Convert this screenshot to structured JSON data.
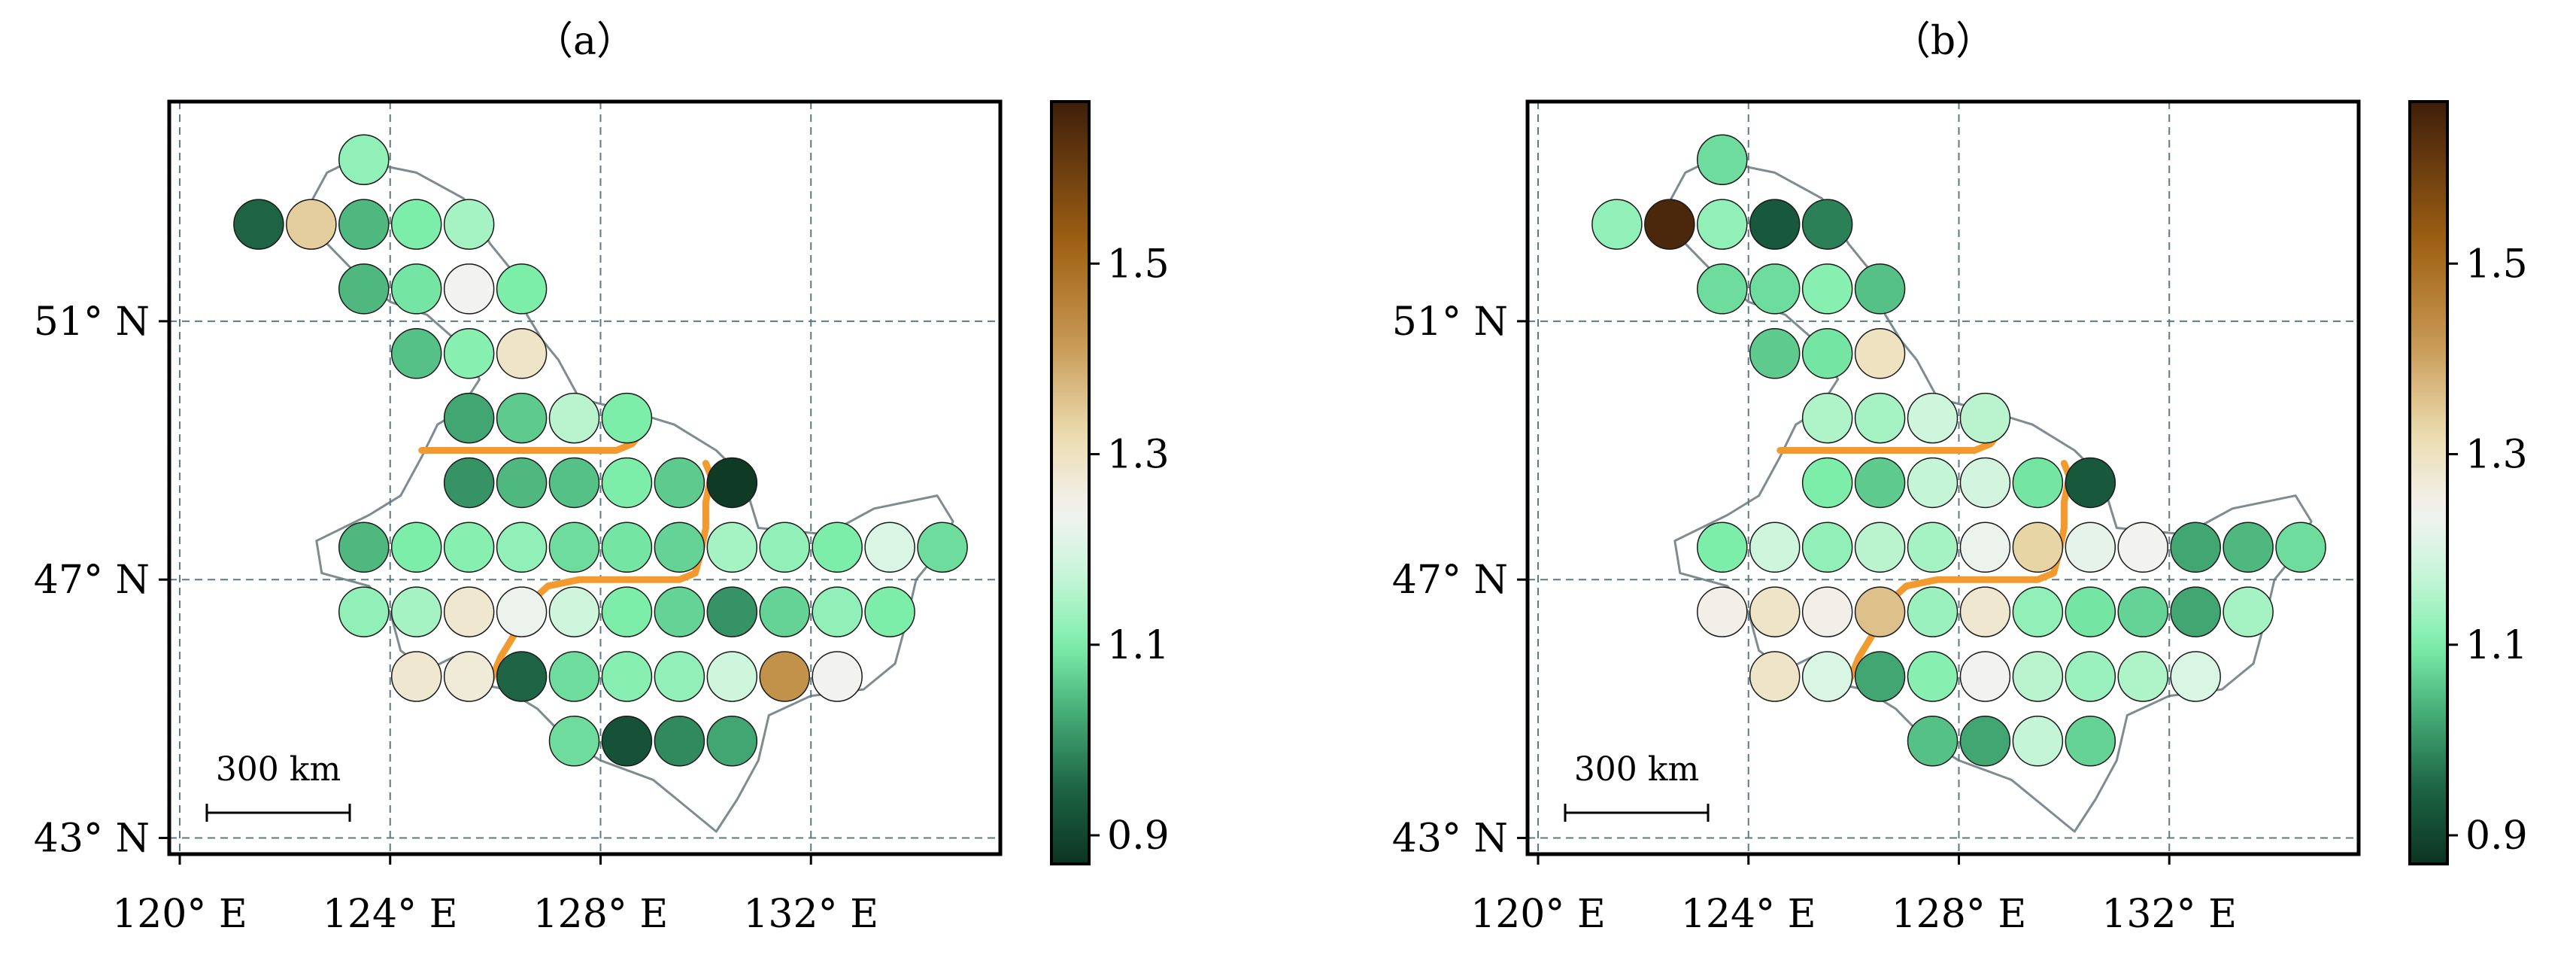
{
  "panels": [
    {
      "title": "（a）",
      "scale_bar_label": "300 km",
      "x_ticks": [
        "120° E",
        "124° E",
        "128° E",
        "132° E"
      ],
      "y_ticks": [
        "51° N",
        "47° N",
        "43° N"
      ],
      "colorbar_ticks": [
        "1.5",
        "1.3",
        "1.1",
        "0.9"
      ],
      "circles": [
        {
          "lon": 123.5,
          "lat": 53.5,
          "v": 1.12
        },
        {
          "lon": 121.5,
          "lat": 52.5,
          "v": 0.95
        },
        {
          "lon": 122.5,
          "lat": 52.5,
          "v": 1.34
        },
        {
          "lon": 123.5,
          "lat": 52.5,
          "v": 1.04
        },
        {
          "lon": 124.5,
          "lat": 52.5,
          "v": 1.1
        },
        {
          "lon": 125.5,
          "lat": 52.5,
          "v": 1.14
        },
        {
          "lon": 123.5,
          "lat": 51.5,
          "v": 1.04
        },
        {
          "lon": 124.5,
          "lat": 51.5,
          "v": 1.09
        },
        {
          "lon": 125.5,
          "lat": 51.5,
          "v": 1.24
        },
        {
          "lon": 126.5,
          "lat": 51.5,
          "v": 1.1
        },
        {
          "lon": 124.5,
          "lat": 50.5,
          "v": 1.05
        },
        {
          "lon": 125.5,
          "lat": 50.5,
          "v": 1.11
        },
        {
          "lon": 126.5,
          "lat": 50.5,
          "v": 1.29
        },
        {
          "lon": 125.5,
          "lat": 49.5,
          "v": 1.02
        },
        {
          "lon": 126.5,
          "lat": 49.5,
          "v": 1.06
        },
        {
          "lon": 127.5,
          "lat": 49.5,
          "v": 1.16
        },
        {
          "lon": 128.5,
          "lat": 49.5,
          "v": 1.1
        },
        {
          "lon": 125.5,
          "lat": 48.5,
          "v": 1.0
        },
        {
          "lon": 126.5,
          "lat": 48.5,
          "v": 1.04
        },
        {
          "lon": 127.5,
          "lat": 48.5,
          "v": 1.05
        },
        {
          "lon": 128.5,
          "lat": 48.5,
          "v": 1.1
        },
        {
          "lon": 129.5,
          "lat": 48.5,
          "v": 1.06
        },
        {
          "lon": 130.5,
          "lat": 48.5,
          "v": 0.88
        },
        {
          "lon": 123.5,
          "lat": 47.5,
          "v": 1.04
        },
        {
          "lon": 124.5,
          "lat": 47.5,
          "v": 1.1
        },
        {
          "lon": 125.5,
          "lat": 47.5,
          "v": 1.11
        },
        {
          "lon": 126.5,
          "lat": 47.5,
          "v": 1.12
        },
        {
          "lon": 127.5,
          "lat": 47.5,
          "v": 1.08
        },
        {
          "lon": 128.5,
          "lat": 47.5,
          "v": 1.09
        },
        {
          "lon": 129.5,
          "lat": 47.5,
          "v": 1.07
        },
        {
          "lon": 130.5,
          "lat": 47.5,
          "v": 1.14
        },
        {
          "lon": 131.5,
          "lat": 47.5,
          "v": 1.12
        },
        {
          "lon": 132.5,
          "lat": 47.5,
          "v": 1.1
        },
        {
          "lon": 133.5,
          "lat": 47.5,
          "v": 1.2
        },
        {
          "lon": 134.5,
          "lat": 47.5,
          "v": 1.08
        },
        {
          "lon": 123.5,
          "lat": 46.5,
          "v": 1.12
        },
        {
          "lon": 124.5,
          "lat": 46.5,
          "v": 1.14
        },
        {
          "lon": 125.5,
          "lat": 46.5,
          "v": 1.28
        },
        {
          "lon": 126.5,
          "lat": 46.5,
          "v": 1.23
        },
        {
          "lon": 127.5,
          "lat": 46.5,
          "v": 1.18
        },
        {
          "lon": 128.5,
          "lat": 46.5,
          "v": 1.1
        },
        {
          "lon": 129.5,
          "lat": 46.5,
          "v": 1.07
        },
        {
          "lon": 130.5,
          "lat": 46.5,
          "v": 1.0
        },
        {
          "lon": 131.5,
          "lat": 46.5,
          "v": 1.07
        },
        {
          "lon": 132.5,
          "lat": 46.5,
          "v": 1.12
        },
        {
          "lon": 133.5,
          "lat": 46.5,
          "v": 1.1
        },
        {
          "lon": 124.5,
          "lat": 45.5,
          "v": 1.28
        },
        {
          "lon": 125.5,
          "lat": 45.5,
          "v": 1.27
        },
        {
          "lon": 126.5,
          "lat": 45.5,
          "v": 0.95
        },
        {
          "lon": 127.5,
          "lat": 45.5,
          "v": 1.08
        },
        {
          "lon": 128.5,
          "lat": 45.5,
          "v": 1.11
        },
        {
          "lon": 129.5,
          "lat": 45.5,
          "v": 1.12
        },
        {
          "lon": 130.5,
          "lat": 45.5,
          "v": 1.18
        },
        {
          "lon": 131.5,
          "lat": 45.5,
          "v": 1.43
        },
        {
          "lon": 132.5,
          "lat": 45.5,
          "v": 1.24
        },
        {
          "lon": 127.5,
          "lat": 44.5,
          "v": 1.08
        },
        {
          "lon": 128.5,
          "lat": 44.5,
          "v": 0.92
        },
        {
          "lon": 129.5,
          "lat": 44.5,
          "v": 0.99
        },
        {
          "lon": 130.5,
          "lat": 44.5,
          "v": 1.02
        }
      ]
    },
    {
      "title": "（b）",
      "scale_bar_label": "300 km",
      "x_ticks": [
        "120° E",
        "124° E",
        "128° E",
        "132° E"
      ],
      "y_ticks": [
        "51° N",
        "47° N",
        "43° N"
      ],
      "colorbar_ticks": [
        "1.5",
        "1.3",
        "1.1",
        "0.9"
      ],
      "circles": [
        {
          "lon": 123.5,
          "lat": 53.5,
          "v": 1.08
        },
        {
          "lon": 121.5,
          "lat": 52.5,
          "v": 1.12
        },
        {
          "lon": 122.5,
          "lat": 52.5,
          "v": 1.65
        },
        {
          "lon": 123.5,
          "lat": 52.5,
          "v": 1.12
        },
        {
          "lon": 124.5,
          "lat": 52.5,
          "v": 0.93
        },
        {
          "lon": 125.5,
          "lat": 52.5,
          "v": 0.98
        },
        {
          "lon": 123.5,
          "lat": 51.5,
          "v": 1.08
        },
        {
          "lon": 124.5,
          "lat": 51.5,
          "v": 1.08
        },
        {
          "lon": 125.5,
          "lat": 51.5,
          "v": 1.11
        },
        {
          "lon": 126.5,
          "lat": 51.5,
          "v": 1.05
        },
        {
          "lon": 124.5,
          "lat": 50.5,
          "v": 1.06
        },
        {
          "lon": 125.5,
          "lat": 50.5,
          "v": 1.09
        },
        {
          "lon": 126.5,
          "lat": 50.5,
          "v": 1.3
        },
        {
          "lon": 125.5,
          "lat": 49.5,
          "v": 1.15
        },
        {
          "lon": 126.5,
          "lat": 49.5,
          "v": 1.14
        },
        {
          "lon": 127.5,
          "lat": 49.5,
          "v": 1.18
        },
        {
          "lon": 128.5,
          "lat": 49.5,
          "v": 1.16
        },
        {
          "lon": 125.5,
          "lat": 48.5,
          "v": 1.1
        },
        {
          "lon": 126.5,
          "lat": 48.5,
          "v": 1.06
        },
        {
          "lon": 127.5,
          "lat": 48.5,
          "v": 1.17
        },
        {
          "lon": 128.5,
          "lat": 48.5,
          "v": 1.19
        },
        {
          "lon": 129.5,
          "lat": 48.5,
          "v": 1.09
        },
        {
          "lon": 130.5,
          "lat": 48.5,
          "v": 0.93
        },
        {
          "lon": 123.5,
          "lat": 47.5,
          "v": 1.1
        },
        {
          "lon": 124.5,
          "lat": 47.5,
          "v": 1.18
        },
        {
          "lon": 125.5,
          "lat": 47.5,
          "v": 1.12
        },
        {
          "lon": 126.5,
          "lat": 47.5,
          "v": 1.16
        },
        {
          "lon": 127.5,
          "lat": 47.5,
          "v": 1.14
        },
        {
          "lon": 128.5,
          "lat": 47.5,
          "v": 1.23
        },
        {
          "lon": 129.5,
          "lat": 47.5,
          "v": 1.33
        },
        {
          "lon": 130.5,
          "lat": 47.5,
          "v": 1.22
        },
        {
          "lon": 131.5,
          "lat": 47.5,
          "v": 1.24
        },
        {
          "lon": 132.5,
          "lat": 47.5,
          "v": 1.02
        },
        {
          "lon": 133.5,
          "lat": 47.5,
          "v": 1.04
        },
        {
          "lon": 134.5,
          "lat": 47.5,
          "v": 1.08
        },
        {
          "lon": 123.5,
          "lat": 46.5,
          "v": 1.25
        },
        {
          "lon": 124.5,
          "lat": 46.5,
          "v": 1.29
        },
        {
          "lon": 125.5,
          "lat": 46.5,
          "v": 1.25
        },
        {
          "lon": 126.5,
          "lat": 46.5,
          "v": 1.36
        },
        {
          "lon": 127.5,
          "lat": 46.5,
          "v": 1.13
        },
        {
          "lon": 128.5,
          "lat": 46.5,
          "v": 1.28
        },
        {
          "lon": 129.5,
          "lat": 46.5,
          "v": 1.12
        },
        {
          "lon": 130.5,
          "lat": 46.5,
          "v": 1.09
        },
        {
          "lon": 131.5,
          "lat": 46.5,
          "v": 1.07
        },
        {
          "lon": 132.5,
          "lat": 46.5,
          "v": 1.02
        },
        {
          "lon": 133.5,
          "lat": 46.5,
          "v": 1.14
        },
        {
          "lon": 124.5,
          "lat": 45.5,
          "v": 1.29
        },
        {
          "lon": 125.5,
          "lat": 45.5,
          "v": 1.2
        },
        {
          "lon": 126.5,
          "lat": 45.5,
          "v": 1.02
        },
        {
          "lon": 127.5,
          "lat": 45.5,
          "v": 1.11
        },
        {
          "lon": 128.5,
          "lat": 45.5,
          "v": 1.24
        },
        {
          "lon": 129.5,
          "lat": 45.5,
          "v": 1.16
        },
        {
          "lon": 130.5,
          "lat": 45.5,
          "v": 1.13
        },
        {
          "lon": 131.5,
          "lat": 45.5,
          "v": 1.15
        },
        {
          "lon": 132.5,
          "lat": 45.5,
          "v": 1.2
        },
        {
          "lon": 127.5,
          "lat": 44.5,
          "v": 1.05
        },
        {
          "lon": 128.5,
          "lat": 44.5,
          "v": 1.02
        },
        {
          "lon": 129.5,
          "lat": 44.5,
          "v": 1.17
        },
        {
          "lon": 130.5,
          "lat": 44.5,
          "v": 1.07
        }
      ]
    }
  ],
  "colorbar": {
    "min": 0.87,
    "max": 1.67
  },
  "colors": {
    "orange_line": "#F39A2F",
    "grid": "#5A7A85",
    "outline": "#7D8C90"
  }
}
